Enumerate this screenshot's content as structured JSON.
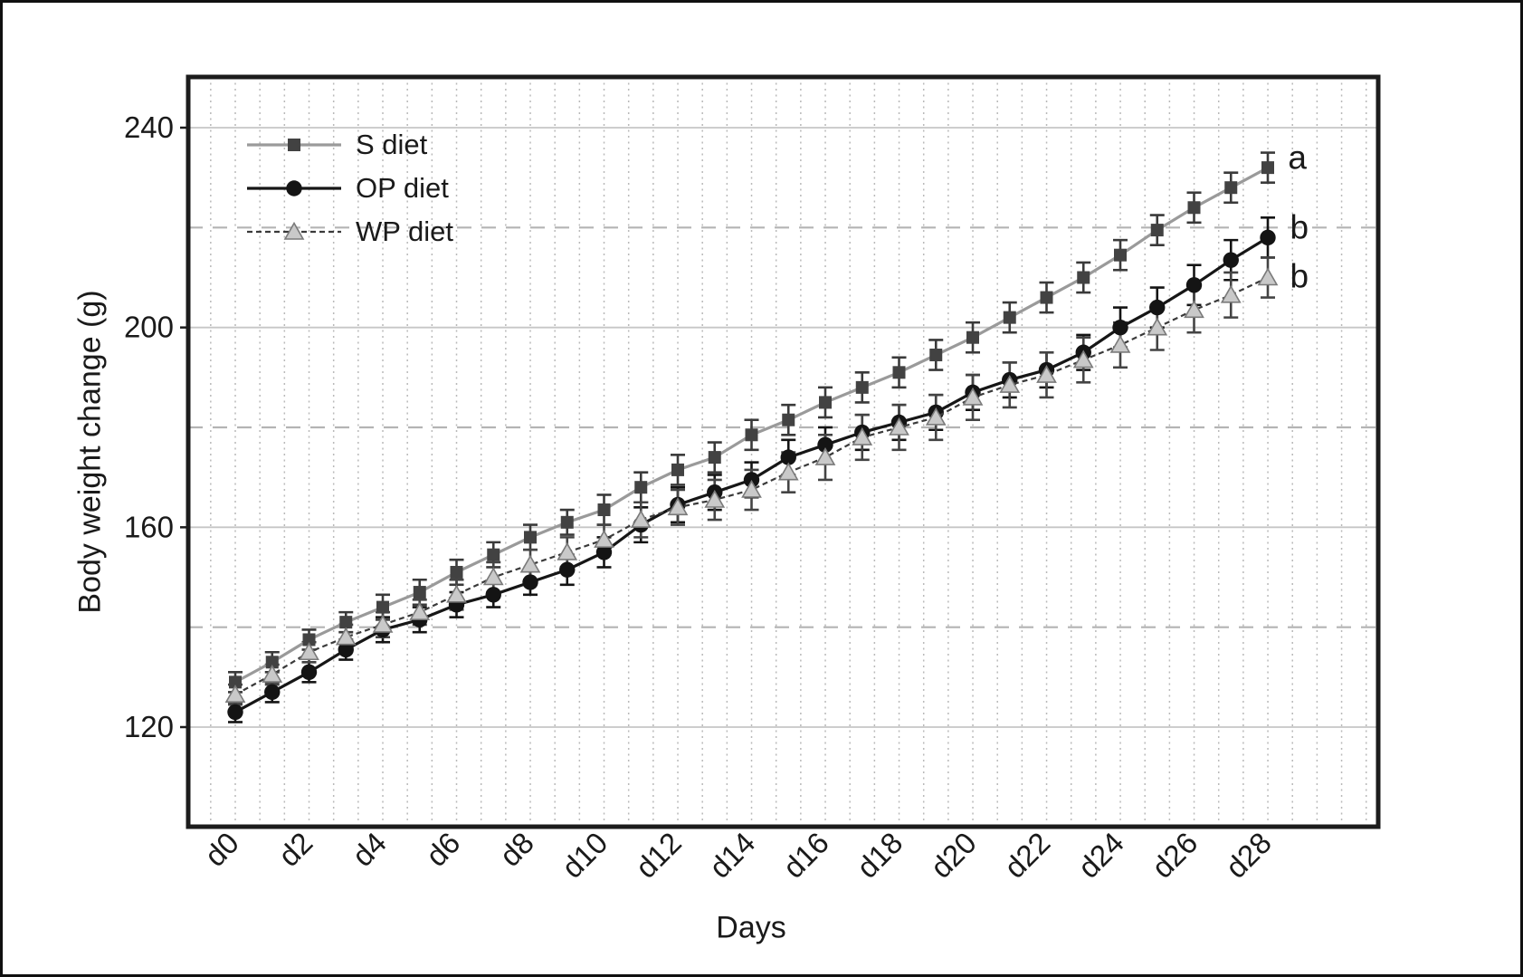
{
  "figure": {
    "background": "#ffffff",
    "frame_color": "#101010"
  },
  "legend": {
    "items": [
      {
        "label": "S diet"
      },
      {
        "label": "OP diet"
      },
      {
        "label": "WP diet"
      }
    ]
  },
  "chart_data": {
    "type": "line",
    "title": "",
    "xlabel": "Days",
    "ylabel": "Body weight change (g)",
    "x": [
      0,
      1,
      2,
      3,
      4,
      5,
      6,
      7,
      8,
      9,
      10,
      11,
      12,
      13,
      14,
      15,
      16,
      17,
      18,
      19,
      20,
      21,
      22,
      23,
      24,
      25,
      26,
      27,
      28
    ],
    "xtick_labels": [
      "d0",
      "d2",
      "d4",
      "d6",
      "d8",
      "d10",
      "d12",
      "d14",
      "d16",
      "d18",
      "d20",
      "d22",
      "d24",
      "d26",
      "d28"
    ],
    "xtick_days": [
      0,
      2,
      4,
      6,
      8,
      10,
      12,
      14,
      16,
      18,
      20,
      22,
      24,
      26,
      28
    ],
    "ytick_values": [
      240,
      200,
      160,
      120
    ],
    "ylim": [
      100,
      250
    ],
    "grid": {
      "y_solid": [
        120,
        160,
        200,
        240
      ],
      "y_dashed": [
        140,
        180,
        220
      ],
      "x_minor_step_days": 0.6667,
      "solid_color": "#c6c6c6",
      "dashed_color": "#b4b4b4",
      "dotted_color": "#b9b9b9"
    },
    "series": [
      {
        "name": "S diet",
        "marker": "square",
        "line_style": "solid",
        "line_color": "#9a9a9a",
        "marker_color": "#424242",
        "err_color": "#3a3a3a",
        "values": [
          129,
          133,
          137.5,
          141,
          144,
          147,
          151,
          154.5,
          158,
          161,
          163.5,
          168,
          171.5,
          174,
          178.5,
          181.5,
          185,
          188,
          191,
          194.5,
          198,
          202,
          206,
          210,
          214.5,
          219.5,
          224,
          228,
          232
        ],
        "errors": [
          2,
          2,
          2,
          2,
          2.5,
          2.5,
          2.5,
          2.5,
          2.5,
          2.5,
          3,
          3,
          3,
          3,
          3,
          3,
          3,
          3,
          3,
          3,
          3,
          3,
          3,
          3,
          3,
          3,
          3,
          3,
          3
        ]
      },
      {
        "name": "OP diet",
        "marker": "circle",
        "line_style": "solid",
        "line_color": "#161616",
        "marker_color": "#141414",
        "err_color": "#141414",
        "values": [
          123,
          127,
          131,
          135.5,
          139.5,
          141.5,
          144.5,
          146.5,
          149,
          151.5,
          155,
          160.5,
          164.5,
          167,
          169.5,
          174,
          176.5,
          179,
          181,
          183,
          187,
          189.5,
          191.5,
          195,
          200,
          204,
          208.5,
          213.5,
          218
        ],
        "errors": [
          2,
          2,
          2,
          2,
          2.5,
          2.5,
          2.5,
          2.5,
          2.5,
          3,
          3,
          3.5,
          3.5,
          3.5,
          3.5,
          3.5,
          3.5,
          3.5,
          3.5,
          3.5,
          3.5,
          3.5,
          3.5,
          3.5,
          4,
          4,
          4,
          4,
          4
        ]
      },
      {
        "name": "WP diet",
        "marker": "triangle",
        "line_style": "dashed",
        "line_color": "#3a3a3a",
        "marker_color": "#c9c9c9",
        "marker_edge": "#7a7a7a",
        "err_color": "#444444",
        "values": [
          126.5,
          130.5,
          135,
          138,
          140.5,
          143,
          146.5,
          150,
          152.5,
          155,
          157.5,
          161.5,
          164,
          165.5,
          167.5,
          171,
          174,
          178,
          180,
          182,
          186,
          188.5,
          190.5,
          193.5,
          196.5,
          200,
          203.5,
          206.5,
          210
        ],
        "errors": [
          2,
          2,
          2,
          2.5,
          2.5,
          2.5,
          3,
          3,
          3,
          3,
          3,
          3.5,
          3.5,
          4,
          4,
          4,
          4.5,
          4.5,
          4.5,
          4.5,
          4.5,
          4.5,
          4.5,
          4.5,
          4.5,
          4.5,
          4.5,
          4.5,
          4
        ]
      }
    ],
    "annotations": [
      {
        "text": "a",
        "day": 28.55,
        "value": 234
      },
      {
        "text": "b",
        "day": 28.6,
        "value": 220
      },
      {
        "text": "b",
        "day": 28.6,
        "value": 210.3
      }
    ],
    "legend_position": "upper-left-inside",
    "text_color": "#1a1a1a",
    "plot_border_color": "#1c1c1c"
  }
}
